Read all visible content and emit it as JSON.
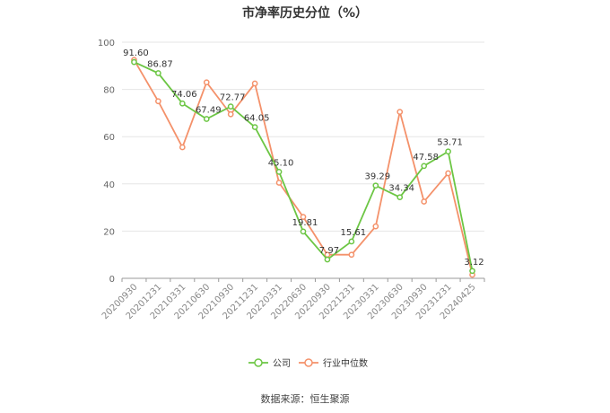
{
  "chart_data": {
    "type": "line",
    "title": "市净率历史分位（%）",
    "categories": [
      "20200930",
      "20201231",
      "20210331",
      "20210630",
      "20210930",
      "20211231",
      "20220331",
      "20220630",
      "20220930",
      "20221231",
      "20230331",
      "20230630",
      "20230930",
      "20231231",
      "20240425"
    ],
    "y_ticks": [
      "0",
      "20",
      "40",
      "60",
      "80",
      "100"
    ],
    "ylim": [
      0,
      100
    ],
    "grid": true,
    "legend_position": "bottom-center",
    "series": [
      {
        "name": "公司",
        "color": "#6cc644",
        "values": [
          91.6,
          86.87,
          74.06,
          67.49,
          72.77,
          64.05,
          45.1,
          19.81,
          7.97,
          15.61,
          39.29,
          34.34,
          47.58,
          53.71,
          3.12
        ],
        "labels": [
          "91.60",
          "86.87",
          "74.06",
          "67.49",
          "72.77",
          "64.05",
          "45.10",
          "19.81",
          "7.97",
          "15.61",
          "39.29",
          "34.34",
          "47.58",
          "53.71",
          "3.12"
        ]
      },
      {
        "name": "行业中位数",
        "color": "#f4916a",
        "values": [
          92.5,
          75.0,
          55.5,
          83.0,
          69.5,
          82.5,
          40.5,
          26.0,
          10.0,
          10.0,
          22.0,
          70.5,
          32.5,
          44.5,
          1.5
        ]
      }
    ]
  },
  "footer": {
    "source": "数据来源：恒生聚源"
  }
}
